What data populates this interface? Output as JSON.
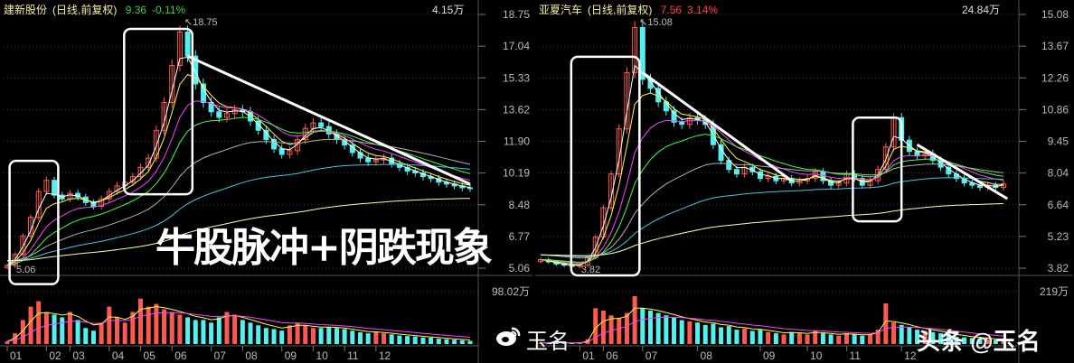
{
  "panels": [
    {
      "title": "建新股份",
      "mode": "(日线,前复权)",
      "price": "9.36",
      "change": "-0.11%",
      "change_color": "#3ccf3c",
      "volume_header": "4.15万",
      "volume_axis_max": "98.02万",
      "high_marker": "↖18.75",
      "low_marker": "5.06"
    },
    {
      "title": "亚夏汽车",
      "mode": "(日线,前复权)",
      "price": "7.56",
      "change": "3.14%",
      "change_color": "#ff4040",
      "volume_header": "24.84万",
      "volume_axis_max": "219万",
      "high_marker": "↖15.08",
      "low_marker": "3.82"
    }
  ],
  "overlay_text": "牛股脉冲+阴跌现象",
  "watermark": {
    "weibo": "玉名",
    "toutiao": "头条 @玉名",
    "weibo_icon": "weibo-logo-icon"
  },
  "colors": {
    "up": "#ff5a50",
    "down": "#54f0f0",
    "background": "#000000",
    "grid": "#3a3a3a",
    "ma": [
      "#ffffff",
      "#ffff40",
      "#ff40ff",
      "#40ff40",
      "#b0b0b0",
      "#40c8e0",
      "#ffffa0"
    ]
  },
  "chart_data": [
    {
      "type": "candlestick",
      "title": "建新股份 (日线,前复权)",
      "ylim": [
        5.06,
        18.75
      ],
      "y_ticks": [
        "18.75",
        "17.04",
        "15.33",
        "13.62",
        "11.90",
        "10.19",
        "8.48",
        "6.77",
        "5.06"
      ],
      "x_ticks": [
        {
          "i": 0,
          "label": "01"
        },
        {
          "i": 5,
          "label": "02"
        },
        {
          "i": 8,
          "label": "03"
        },
        {
          "i": 13,
          "label": "04"
        },
        {
          "i": 17,
          "label": "05"
        },
        {
          "i": 21,
          "label": "06"
        },
        {
          "i": 26,
          "label": "07"
        },
        {
          "i": 30,
          "label": "08"
        },
        {
          "i": 35,
          "label": "09"
        },
        {
          "i": 39,
          "label": "10"
        },
        {
          "i": 43,
          "label": "11"
        },
        {
          "i": 47,
          "label": "12"
        }
      ],
      "close": [
        5.2,
        5.8,
        6.8,
        7.8,
        9.2,
        9.8,
        9.0,
        8.8,
        9.1,
        8.9,
        8.6,
        8.4,
        8.8,
        9.2,
        9.5,
        9.7,
        10.0,
        10.5,
        11.0,
        12.5,
        14.0,
        16.0,
        17.8,
        16.5,
        15.0,
        14.0,
        13.5,
        13.2,
        13.4,
        13.6,
        13.5,
        13.0,
        12.5,
        12.0,
        11.5,
        11.2,
        11.4,
        12.0,
        12.6,
        12.9,
        12.7,
        12.3,
        12.0,
        11.7,
        11.3,
        11.0,
        10.8,
        10.9,
        11.0,
        10.7,
        10.5,
        10.3,
        10.2,
        10.0,
        9.9,
        9.7,
        9.6,
        9.5,
        9.4,
        9.36
      ],
      "volume_max": 98.02,
      "volume": [
        5,
        20,
        45,
        70,
        80,
        60,
        55,
        50,
        60,
        45,
        30,
        25,
        40,
        70,
        50,
        40,
        60,
        85,
        70,
        75,
        65,
        60,
        55,
        50,
        45,
        45,
        40,
        50,
        60,
        55,
        45,
        40,
        35,
        30,
        28,
        25,
        35,
        40,
        35,
        30,
        30,
        32,
        30,
        28,
        25,
        22,
        20,
        22,
        20,
        18,
        16,
        15,
        14,
        12,
        12,
        10,
        9,
        8,
        7,
        6
      ],
      "annotations": {
        "trend_lines": [
          {
            "from": [
              23,
              16.5
            ],
            "to": [
              59,
              9.6
            ]
          }
        ],
        "boxes": [
          {
            "i": [
              0.3,
              6.5
            ],
            "price": [
              4.2,
              10.85
            ]
          },
          {
            "i": [
              14.9,
              23.6
            ],
            "price": [
              9.05,
              17.97
            ]
          }
        ]
      }
    },
    {
      "type": "candlestick",
      "title": "亚夏汽车 (日线,前复权)",
      "ylim": [
        3.82,
        15.08
      ],
      "y_ticks": [
        "15.08",
        "13.67",
        "12.26",
        "10.86",
        "9.45",
        "8.04",
        "6.64",
        "5.23",
        "3.82"
      ],
      "x_ticks": [
        {
          "i": 5,
          "label": "01"
        },
        {
          "i": 8,
          "label": "06"
        },
        {
          "i": 13,
          "label": "07"
        },
        {
          "i": 20,
          "label": "08"
        },
        {
          "i": 28,
          "label": "09"
        },
        {
          "i": 34,
          "label": "10"
        },
        {
          "i": 39,
          "label": "11"
        },
        {
          "i": 46,
          "label": "12"
        }
      ],
      "close": [
        4.2,
        4.1,
        4.0,
        3.95,
        3.9,
        3.95,
        4.3,
        5.2,
        6.5,
        8.0,
        10.0,
        12.5,
        14.5,
        12.2,
        11.8,
        11.2,
        10.8,
        10.3,
        10.2,
        10.5,
        10.4,
        10.2,
        9.3,
        8.6,
        8.2,
        8.0,
        8.3,
        8.1,
        7.8,
        7.9,
        7.7,
        7.8,
        7.6,
        7.7,
        7.8,
        8.1,
        7.7,
        7.5,
        7.6,
        8.0,
        7.8,
        7.5,
        7.7,
        8.2,
        9.2,
        10.5,
        9.5,
        9.0,
        8.8,
        8.9,
        8.6,
        8.3,
        8.0,
        7.8,
        7.6,
        7.5,
        7.4,
        7.5,
        7.4,
        7.56
      ],
      "volume_max": 219,
      "volume": [
        5,
        6,
        5,
        5,
        4,
        6,
        20,
        150,
        140,
        120,
        110,
        130,
        200,
        150,
        140,
        130,
        120,
        110,
        100,
        95,
        90,
        80,
        85,
        70,
        75,
        60,
        65,
        55,
        60,
        50,
        45,
        40,
        50,
        45,
        40,
        55,
        45,
        40,
        35,
        45,
        40,
        35,
        40,
        60,
        170,
        90,
        80,
        70,
        60,
        55,
        50,
        45,
        40,
        30,
        28,
        25,
        22,
        20,
        18,
        20
      ],
      "annotations": {
        "trend_lines": [
          {
            "from": [
              13,
              12.5
            ],
            "to": [
              32,
              7.7
            ]
          },
          {
            "from": [
              48,
              9.3
            ],
            "to": [
              59.5,
              6.9
            ]
          }
        ],
        "boxes": [
          {
            "i": [
              3.9,
              12.6
            ],
            "price": [
              3.5,
              13.2
            ]
          },
          {
            "i": [
              39.8,
              46
            ],
            "price": [
              5.9,
              10.5
            ]
          }
        ]
      }
    }
  ]
}
